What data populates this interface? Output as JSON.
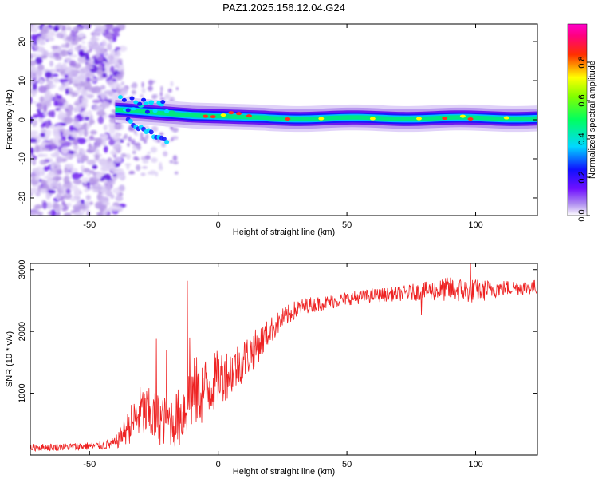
{
  "title": "PAZ1.2025.156.12.04.G24",
  "chart_data": [
    {
      "type": "heatmap",
      "xlabel": "Height of straight line (km)",
      "ylabel": "Frequency (Hz)",
      "xlim": [
        -73,
        124
      ],
      "ylim": [
        -24.5,
        24.5
      ],
      "xticks": [
        -50,
        0,
        50,
        100
      ],
      "yticks": [
        -20,
        -10,
        0,
        10,
        20
      ],
      "colorbar": {
        "label": "Normalized spectral amplitude",
        "range": [
          0,
          1
        ],
        "ticks": [
          "0.0",
          "0.2",
          "0.4",
          "0.6",
          "0.8"
        ],
        "tick_values": [
          0,
          0.2,
          0.4,
          0.6,
          0.8
        ],
        "colormap": "rainbow (white-violet-blue-cyan-green-yellow-red-magenta)"
      },
      "ridge_description": "Dominant frequency ridge near 0-3 Hz from -40 km to 124 km with diffuse low-amplitude scatter below -35 km"
    },
    {
      "type": "line",
      "xlabel": "Height of straight line (km)",
      "ylabel": "SNR (10 * v/v)",
      "xlim": [
        -73,
        124
      ],
      "ylim": [
        0,
        3100
      ],
      "xticks": [
        -50,
        0,
        50,
        100
      ],
      "yticks": [
        1000,
        2000,
        3000
      ],
      "color": "#ee2222",
      "trend": {
        "x": [
          -73,
          -60,
          -45,
          -40,
          -35,
          -30,
          -25,
          -20,
          -15,
          -10,
          -5,
          0,
          5,
          10,
          15,
          20,
          25,
          30,
          35,
          40,
          50,
          60,
          70,
          80,
          90,
          100,
          110,
          124
        ],
        "y": [
          120,
          130,
          150,
          190,
          450,
          700,
          600,
          550,
          600,
          1000,
          1050,
          1250,
          1350,
          1550,
          1750,
          2000,
          2200,
          2350,
          2430,
          2450,
          2530,
          2580,
          2610,
          2650,
          2680,
          2650,
          2700,
          2720
        ],
        "amp": [
          60,
          60,
          70,
          100,
          280,
          450,
          450,
          400,
          500,
          600,
          550,
          450,
          400,
          350,
          300,
          220,
          180,
          150,
          130,
          120,
          110,
          110,
          120,
          150,
          200,
          200,
          130,
          120
        ]
      },
      "spikes": [
        [
          -12,
          2820
        ],
        [
          -24,
          1880
        ],
        [
          -20,
          1700
        ],
        [
          -11,
          1900
        ],
        [
          98,
          3120
        ],
        [
          89,
          2870
        ],
        [
          79,
          2260
        ]
      ]
    }
  ]
}
